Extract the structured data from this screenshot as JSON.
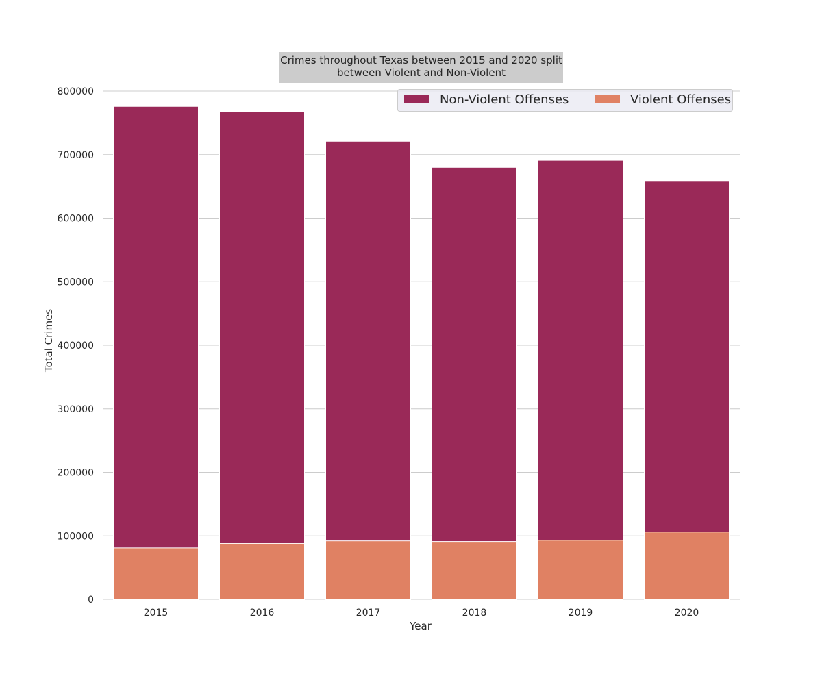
{
  "chart_data": {
    "type": "bar",
    "stacked": "overlay",
    "title_lines": [
      "Crimes throughout Texas between 2015 and 2020 split",
      "between Violent and Non-Violent"
    ],
    "xlabel": "Year",
    "ylabel": "Total Crimes",
    "categories": [
      "2015",
      "2016",
      "2017",
      "2018",
      "2019",
      "2020"
    ],
    "ylim": [
      0,
      800000
    ],
    "yticks": [
      0,
      100000,
      200000,
      300000,
      400000,
      500000,
      600000,
      700000,
      800000
    ],
    "series": [
      {
        "name": "Non-Violent Offenses",
        "color": "#9A2958",
        "values": [
          776000,
          768000,
          721000,
          680000,
          691000,
          659000
        ]
      },
      {
        "name": "Violent Offenses",
        "color": "#E08163",
        "values": [
          81000,
          88000,
          92000,
          91000,
          93000,
          106000
        ]
      }
    ],
    "grid": "horizontal",
    "legend_position": "top-right",
    "legend_columns": 2,
    "title_box_color": "#CCCCCC"
  }
}
